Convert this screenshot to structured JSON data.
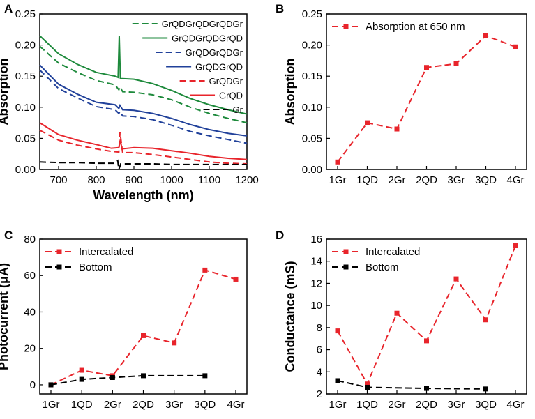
{
  "colors": {
    "red": "#e8242b",
    "black": "#000000",
    "green": "#1e8a3c",
    "blue": "#21419a"
  },
  "chart_data": [
    {
      "panel": "A",
      "type": "line",
      "xlabel": "Wavelength (nm)",
      "ylabel": "Absorption",
      "xlim": [
        650,
        1200
      ],
      "ylim": [
        0,
        0.25
      ],
      "xticks": [
        "700",
        "800",
        "900",
        "1000",
        "1100",
        "1200"
      ],
      "yticks": [
        "0.00",
        "0.05",
        "0.10",
        "0.15",
        "0.20",
        "0.25"
      ],
      "legend_position": "top-right",
      "series": [
        {
          "name": "GrQDGrQDGrQDGr",
          "color": "green",
          "dash": true,
          "x": [
            650,
            700,
            750,
            800,
            850,
            860,
            863,
            870,
            900,
            950,
            1000,
            1050,
            1100,
            1150,
            1200
          ],
          "y": [
            0.198,
            0.171,
            0.156,
            0.143,
            0.136,
            0.128,
            0.133,
            0.125,
            0.124,
            0.12,
            0.112,
            0.1,
            0.09,
            0.082,
            0.075
          ]
        },
        {
          "name": "GrQDGrQDGrQD",
          "color": "green",
          "dash": false,
          "x": [
            650,
            700,
            750,
            800,
            850,
            858,
            861,
            864,
            870,
            900,
            950,
            1000,
            1050,
            1100,
            1150,
            1200
          ],
          "y": [
            0.215,
            0.186,
            0.169,
            0.156,
            0.15,
            0.148,
            0.215,
            0.146,
            0.146,
            0.145,
            0.138,
            0.127,
            0.114,
            0.104,
            0.096,
            0.089
          ]
        },
        {
          "name": "GrQDGrQDGr",
          "color": "blue",
          "dash": true,
          "x": [
            650,
            700,
            750,
            800,
            850,
            860,
            863,
            870,
            900,
            950,
            1000,
            1050,
            1100,
            1150,
            1200
          ],
          "y": [
            0.16,
            0.13,
            0.115,
            0.101,
            0.096,
            0.09,
            0.093,
            0.086,
            0.085,
            0.08,
            0.071,
            0.061,
            0.054,
            0.048,
            0.042
          ]
        },
        {
          "name": "GrQDGrQD",
          "color": "blue",
          "dash": false,
          "x": [
            650,
            700,
            750,
            800,
            850,
            860,
            863,
            870,
            900,
            950,
            1000,
            1050,
            1100,
            1150,
            1200
          ],
          "y": [
            0.168,
            0.137,
            0.121,
            0.108,
            0.104,
            0.098,
            0.103,
            0.096,
            0.095,
            0.09,
            0.082,
            0.072,
            0.064,
            0.058,
            0.054
          ]
        },
        {
          "name": "GrQDGr",
          "color": "red",
          "dash": true,
          "x": [
            650,
            700,
            750,
            800,
            840,
            860,
            863,
            870,
            900,
            950,
            1000,
            1050,
            1100,
            1150,
            1200
          ],
          "y": [
            0.063,
            0.047,
            0.039,
            0.033,
            0.029,
            0.028,
            0.06,
            0.027,
            0.027,
            0.024,
            0.02,
            0.016,
            0.012,
            0.01,
            0.009
          ]
        },
        {
          "name": "GrQD",
          "color": "red",
          "dash": false,
          "x": [
            650,
            700,
            750,
            800,
            840,
            860,
            864,
            868,
            900,
            950,
            1000,
            1050,
            1100,
            1150,
            1200
          ],
          "y": [
            0.075,
            0.056,
            0.047,
            0.04,
            0.034,
            0.035,
            0.048,
            0.033,
            0.035,
            0.034,
            0.03,
            0.026,
            0.021,
            0.018,
            0.016
          ]
        },
        {
          "name": "Gr",
          "color": "black",
          "dash": true,
          "x": [
            650,
            700,
            750,
            800,
            850,
            857,
            860,
            865,
            900,
            950,
            1000,
            1050,
            1100,
            1150,
            1200
          ],
          "y": [
            0.012,
            0.011,
            0.011,
            0.01,
            0.01,
            0.014,
            0.0,
            0.009,
            0.009,
            0.009,
            0.008,
            0.008,
            0.008,
            0.008,
            0.008
          ]
        }
      ]
    },
    {
      "panel": "B",
      "type": "line",
      "title": "",
      "xlabel": "",
      "ylabel": "Absorption",
      "categories": [
        "1Gr",
        "1QD",
        "2Gr",
        "2QD",
        "3Gr",
        "3QD",
        "4Gr"
      ],
      "ylim": [
        0,
        0.25
      ],
      "yticks": [
        "0.00",
        "0.05",
        "0.10",
        "0.15",
        "0.20",
        "0.25"
      ],
      "legend_position": "top-left",
      "series": [
        {
          "name": "Absorption at 650 nm",
          "color": "red",
          "values": [
            0.012,
            0.075,
            0.065,
            0.164,
            0.17,
            0.215,
            0.197
          ]
        }
      ]
    },
    {
      "panel": "C",
      "type": "line",
      "xlabel": "",
      "ylabel": "Photocurrent  (μA)",
      "categories": [
        "1Gr",
        "1QD",
        "2Gr",
        "2QD",
        "3Gr",
        "3QD",
        "4Gr"
      ],
      "ylim": [
        -5,
        80
      ],
      "yticks": [
        "0",
        "20",
        "40",
        "60",
        "80"
      ],
      "legend_position": "top-left",
      "series": [
        {
          "name": "Intercalated",
          "color": "red",
          "values": [
            0,
            8,
            5,
            27,
            23,
            63,
            58
          ]
        },
        {
          "name": "Bottom",
          "color": "black",
          "values": [
            0,
            3,
            4,
            5,
            null,
            5,
            null
          ]
        }
      ]
    },
    {
      "panel": "D",
      "type": "line",
      "xlabel": "",
      "ylabel": "Conductance (mS)",
      "categories": [
        "1Gr",
        "1QD",
        "2Gr",
        "2QD",
        "3Gr",
        "3QD",
        "4Gr"
      ],
      "ylim": [
        2,
        16
      ],
      "yticks": [
        "2",
        "4",
        "6",
        "8",
        "10",
        "12",
        "14",
        "16"
      ],
      "legend_position": "top-left",
      "series": [
        {
          "name": "Intercalated",
          "color": "red",
          "values": [
            7.7,
            2.9,
            9.3,
            6.8,
            12.4,
            8.7,
            15.4
          ]
        },
        {
          "name": "Bottom",
          "color": "black",
          "values": [
            3.2,
            2.6,
            null,
            2.5,
            null,
            2.45,
            null
          ]
        }
      ]
    }
  ]
}
